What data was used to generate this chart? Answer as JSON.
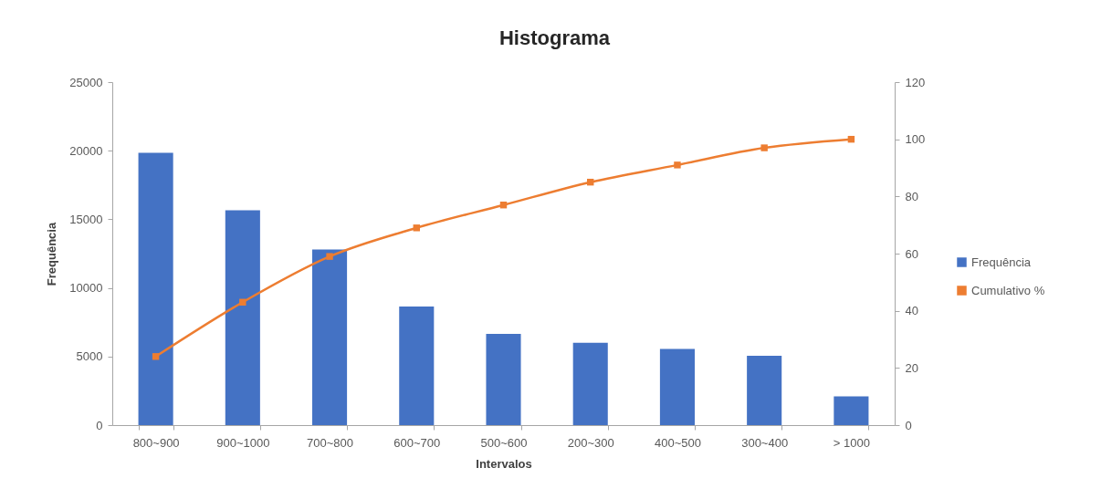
{
  "chart_data": {
    "type": "bar",
    "title": "Histograma",
    "xlabel": "Intervalos",
    "ylabel": "Frequência",
    "categories": [
      "800~900",
      "900~1000",
      "700~800",
      "600~700",
      "500~600",
      "200~300",
      "400~500",
      "300~400",
      "> 1000"
    ],
    "series": [
      {
        "name": "Frequência",
        "color": "#4472c4",
        "values": [
          19850,
          15650,
          12800,
          8650,
          6650,
          6000,
          5550,
          5050,
          2100
        ]
      },
      {
        "name": "Cumulativo %",
        "type": "line",
        "axis": "y2",
        "color": "#ed7d31",
        "values": [
          24,
          43,
          59,
          69,
          77,
          85,
          91,
          97,
          100
        ]
      }
    ],
    "ylim": [
      0,
      25000
    ],
    "yticks": [
      0,
      5000,
      10000,
      15000,
      20000,
      25000
    ],
    "y2lim": [
      0,
      120
    ],
    "y2ticks": [
      0,
      20,
      40,
      60,
      80,
      100,
      120
    ],
    "legend": "right",
    "grid": false,
    "marker": "square",
    "line_style": "solid"
  }
}
